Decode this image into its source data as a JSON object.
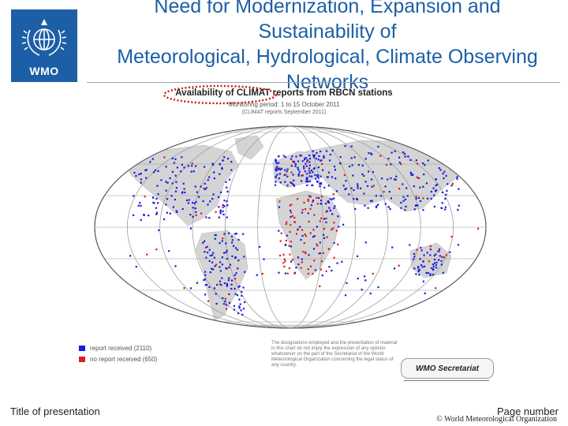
{
  "logo": {
    "text": "WMO"
  },
  "title": {
    "line1": "Need for Modernization, Expansion and",
    "line2": "Sustainability of",
    "line3": "Meteorological, Hydrological, Climate Observing",
    "line4": "Networks"
  },
  "map": {
    "caption": "Availability of CLIMAT reports from RBCN stations",
    "subcaption1": "Monitoring period: 1 to 15 October 2011",
    "subcaption2": "(CLIMAT reports September 2011)",
    "legend": [
      {
        "label": "report received (2110)",
        "color": "#1a1ae6"
      },
      {
        "label": "no report received (650)",
        "color": "#e01b1b"
      }
    ],
    "disclaimer": "The designations employed and the presentation of material in this chart do not imply the expression of any opinion whatsoever on the part of the Secretariat of the World Meteorological Organization concerning the legal status of any country.",
    "secretariat_label": "WMO Secretariat"
  },
  "footer": {
    "left": "Title of presentation",
    "right": "Page number",
    "copyright": "© World Meteorological Organization"
  },
  "colors": {
    "brand_blue": "#1d5fa6",
    "received": "#1a1ae6",
    "not_received": "#e01b1b",
    "land": "#d4d4d4"
  }
}
